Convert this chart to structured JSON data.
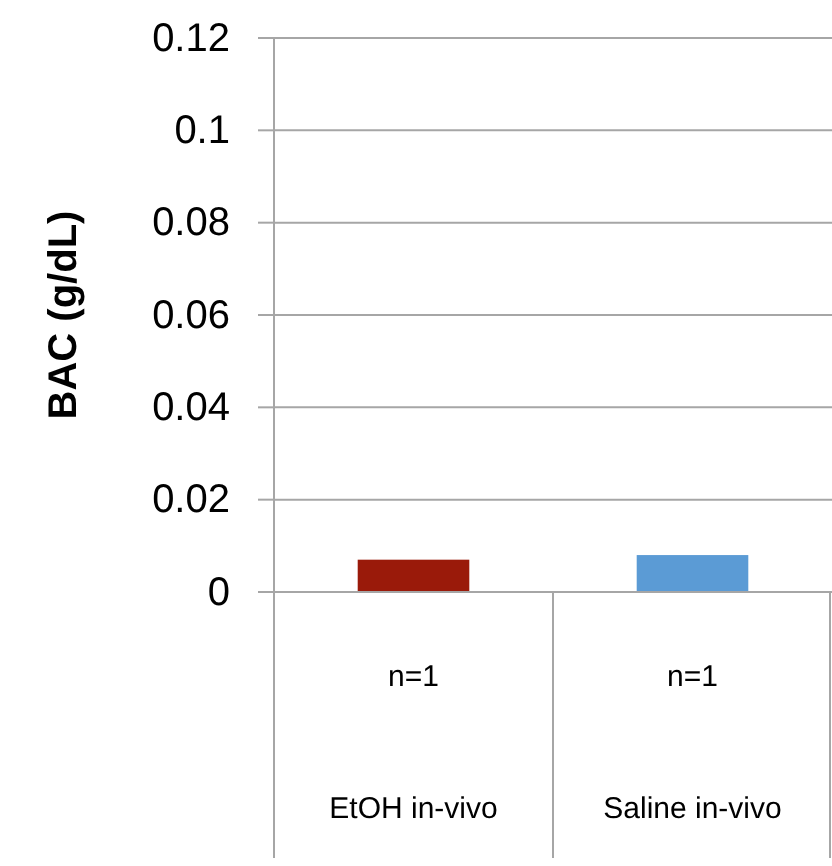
{
  "chart_data": {
    "type": "bar",
    "ylabel": "BAC (g/dL)",
    "categories": [
      "EtOH in-vivo",
      "Saline in-vivo"
    ],
    "values": [
      0.007,
      0.008
    ],
    "colors": [
      "#9a1a0a",
      "#5b9bd5"
    ],
    "ylim": [
      0,
      0.12
    ],
    "yticks": [
      0,
      0.02,
      0.04,
      0.06,
      0.08,
      0.1,
      0.12
    ],
    "grid": "y",
    "annotations": [
      "n=1",
      "n=1"
    ]
  }
}
